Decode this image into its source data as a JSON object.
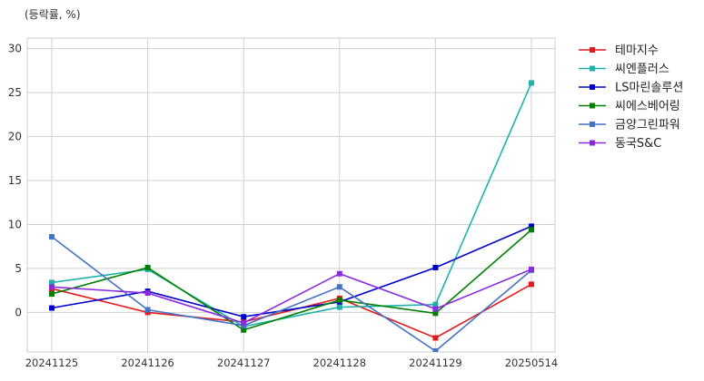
{
  "chart_data": {
    "type": "line",
    "title": "",
    "unit_label": "(등락률, %)",
    "xlabel": "",
    "ylabel": "",
    "categories": [
      "20241125",
      "20241126",
      "20241127",
      "20241128",
      "20241129",
      "20250514"
    ],
    "ylim": [
      -4.5,
      31.2
    ],
    "yticks": [
      0,
      5,
      10,
      15,
      20,
      25,
      30
    ],
    "grid": true,
    "legend_position": "right-top",
    "series": [
      {
        "name": "테마지수",
        "color": "#e31a1c",
        "values": [
          2.7,
          0.0,
          -1.1,
          1.6,
          -2.9,
          3.2
        ]
      },
      {
        "name": "씨엔플러스",
        "color": "#20b2aa",
        "values": [
          3.4,
          4.9,
          -1.6,
          0.6,
          0.9,
          26.1
        ]
      },
      {
        "name": "LS마린솔루션",
        "color": "#0000cd",
        "values": [
          0.5,
          2.4,
          -0.5,
          1.2,
          5.1,
          9.8
        ]
      },
      {
        "name": "씨에스베어링",
        "color": "#008000",
        "values": [
          2.1,
          5.1,
          -2.0,
          1.4,
          -0.1,
          9.4
        ]
      },
      {
        "name": "금양그린파워",
        "color": "#4472c4",
        "values": [
          8.6,
          0.3,
          -1.5,
          2.9,
          -4.4,
          4.8
        ]
      },
      {
        "name": "동국S&C",
        "color": "#8a2be2",
        "values": [
          2.9,
          2.2,
          -1.2,
          4.4,
          0.4,
          4.9
        ]
      }
    ]
  }
}
